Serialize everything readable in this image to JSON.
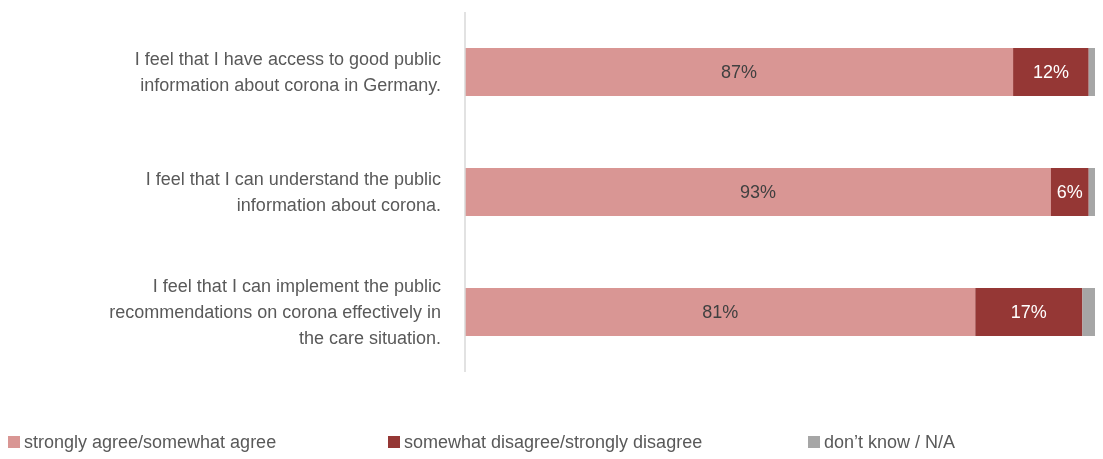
{
  "chart_data": {
    "type": "bar",
    "orientation": "horizontal",
    "stacked": true,
    "legend": "bottom",
    "categories": [
      "I feel that I have access to good public information about corona in Germany.",
      "I feel that I can understand the public information about corona.",
      "I feel that I can implement the public recommendations on corona effectively in the care situation."
    ],
    "series": [
      {
        "name": "strongly agree/somewhat agree",
        "color": "#d99694",
        "values": [
          87,
          93,
          81
        ],
        "value_labels": [
          "87%",
          "93%",
          "81%"
        ]
      },
      {
        "name": "somewhat disagree/strongly disagree",
        "color": "#953735",
        "values": [
          12,
          6,
          17
        ],
        "value_labels": [
          "12%",
          "6%",
          "17%"
        ]
      },
      {
        "name": "don’t know / N/A",
        "color": "#a6a6a6",
        "values": [
          1,
          1,
          2
        ],
        "value_labels": [
          null,
          null,
          null
        ]
      }
    ]
  }
}
